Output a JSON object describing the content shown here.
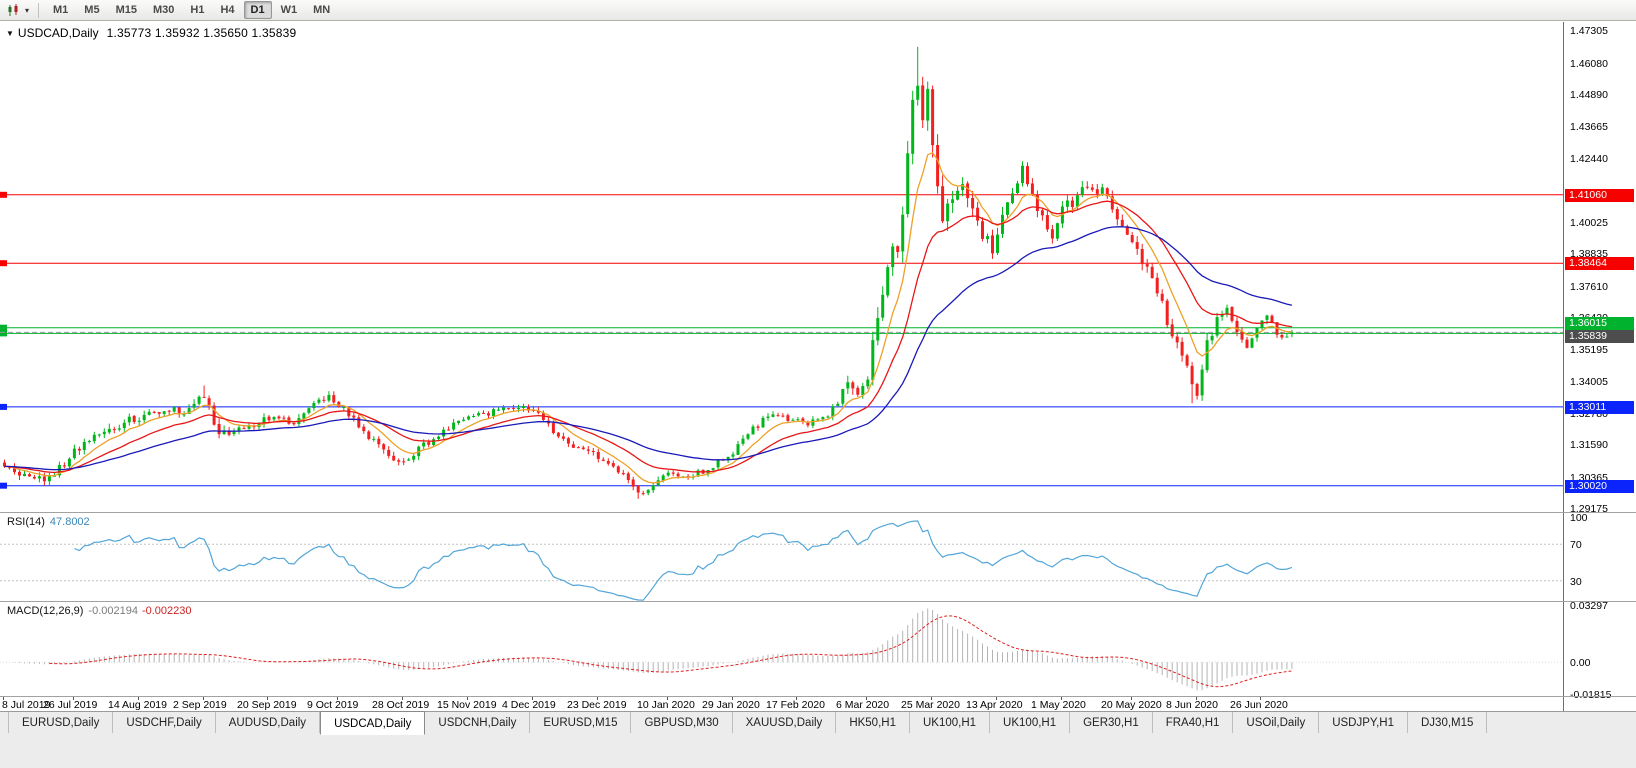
{
  "toolbar": {
    "periods": [
      "M1",
      "M5",
      "M15",
      "M30",
      "H1",
      "H4",
      "D1",
      "W1",
      "MN"
    ],
    "active_period": "D1",
    "chart_type_icon": "candlestick-chart-icon"
  },
  "chart": {
    "symbol_period": "USDCAD,Daily",
    "ohlc": {
      "open": "1.35773",
      "high": "1.35932",
      "low": "1.35650",
      "close": "1.35839"
    },
    "ohlc_text": "1.35773 1.35932 1.35650 1.35839"
  },
  "rsi": {
    "title": "RSI(14)",
    "value": "47.8002",
    "scale_labels": [
      "100",
      "70",
      "30"
    ],
    "level_lines": [
      70,
      30
    ],
    "line_color": "#53a6d8"
  },
  "macd": {
    "title": "MACD(12,26,9)",
    "value_main": "-0.002194",
    "value_signal": "-0.002230",
    "scale_labels": [
      "0.03297",
      "0.00",
      "-0.01815"
    ],
    "histogram_color": "#b4b4b4",
    "signal_color": "#e02020"
  },
  "tabs": {
    "active_index": 3,
    "items": [
      "EURUSD,Daily",
      "USDCHF,Daily",
      "AUDUSD,Daily",
      "USDCAD,Daily",
      "USDCNH,Daily",
      "EURUSD,M15",
      "GBPUSD,M30",
      "XAUUSD,Daily",
      "HK50,H1",
      "UK100,H1",
      "UK100,H1",
      "GER30,H1",
      "FRA40,H1",
      "USOil,Daily",
      "USDJPY,H1",
      "DJ30,M15"
    ]
  },
  "chart_data": {
    "type": "candlestick",
    "symbol": "USDCAD",
    "timeframe": "Daily",
    "title": "USDCAD,Daily",
    "current_bar": {
      "open": 1.35773,
      "high": 1.35932,
      "low": 1.3565,
      "close": 1.35839
    },
    "y_axis_ticks": [
      1.47305,
      1.4608,
      1.4489,
      1.43665,
      1.4244,
      1.40025,
      1.38835,
      1.3761,
      1.3642,
      1.35195,
      1.34005,
      1.3278,
      1.3159,
      1.30365,
      1.29175
    ],
    "y_axis_range": [
      1.2902,
      1.4762
    ],
    "x_axis_labels": [
      [
        "8 Jul 2019",
        0
      ],
      [
        "26 Jul 2019",
        14
      ],
      [
        "14 Aug 2019",
        27
      ],
      [
        "2 Sep 2019",
        40
      ],
      [
        "20 Sep 2019",
        53
      ],
      [
        "9 Oct 2019",
        67
      ],
      [
        "28 Oct 2019",
        80
      ],
      [
        "15 Nov 2019",
        93
      ],
      [
        "4 Dec 2019",
        106
      ],
      [
        "23 Dec 2019",
        119
      ],
      [
        "10 Jan 2020",
        133
      ],
      [
        "29 Jan 2020",
        146
      ],
      [
        "17 Feb 2020",
        159
      ],
      [
        "6 Mar 2020",
        173
      ],
      [
        "25 Mar 2020",
        186
      ],
      [
        "13 Apr 2020",
        199
      ],
      [
        "1 May 2020",
        212
      ],
      [
        "20 May 2020",
        226
      ],
      [
        "8 Jun 2020",
        239
      ],
      [
        "26 Jun 2020",
        252
      ]
    ],
    "num_candles": 259,
    "up_color": "#00b61b",
    "down_color": "#f32020",
    "close_anchors": [
      [
        0,
        1.3075,
        0.0035
      ],
      [
        4,
        1.3042,
        0.0035
      ],
      [
        9,
        1.3028,
        0.0032
      ],
      [
        14,
        1.3132,
        0.0036
      ],
      [
        18,
        1.3185,
        0.0038
      ],
      [
        22,
        1.3228,
        0.0042
      ],
      [
        27,
        1.3262,
        0.0038
      ],
      [
        32,
        1.3292,
        0.0035
      ],
      [
        36,
        1.3278,
        0.0035
      ],
      [
        40,
        1.3338,
        0.004
      ],
      [
        43,
        1.3195,
        0.0042
      ],
      [
        48,
        1.3222,
        0.0034
      ],
      [
        53,
        1.3258,
        0.003
      ],
      [
        58,
        1.3246,
        0.003
      ],
      [
        62,
        1.3305,
        0.0034
      ],
      [
        65,
        1.3332,
        0.0034
      ],
      [
        69,
        1.327,
        0.0034
      ],
      [
        73,
        1.3185,
        0.0034
      ],
      [
        77,
        1.312,
        0.0032
      ],
      [
        80,
        1.3082,
        0.003
      ],
      [
        84,
        1.3155,
        0.0034
      ],
      [
        88,
        1.3215,
        0.003
      ],
      [
        93,
        1.3252,
        0.0028
      ],
      [
        98,
        1.3286,
        0.0028
      ],
      [
        102,
        1.3302,
        0.0028
      ],
      [
        106,
        1.3288,
        0.0032
      ],
      [
        109,
        1.3225,
        0.0034
      ],
      [
        113,
        1.3162,
        0.0028
      ],
      [
        117,
        1.3128,
        0.0028
      ],
      [
        120,
        1.3098,
        0.0028
      ],
      [
        124,
        1.3042,
        0.0028
      ],
      [
        127,
        1.2972,
        0.003
      ],
      [
        130,
        1.2998,
        0.0028
      ],
      [
        133,
        1.3048,
        0.0028
      ],
      [
        137,
        1.3042,
        0.0024
      ],
      [
        141,
        1.3062,
        0.0024
      ],
      [
        146,
        1.3132,
        0.0028
      ],
      [
        150,
        1.3218,
        0.0028
      ],
      [
        154,
        1.3278,
        0.0026
      ],
      [
        158,
        1.3252,
        0.0024
      ],
      [
        161,
        1.3238,
        0.0024
      ],
      [
        164,
        1.3252,
        0.0026
      ],
      [
        167,
        1.3318,
        0.0036
      ],
      [
        169,
        1.3398,
        0.005
      ],
      [
        171,
        1.3342,
        0.0048
      ],
      [
        173,
        1.3422,
        0.0052
      ],
      [
        175,
        1.3662,
        0.0095
      ],
      [
        176,
        1.3728,
        0.0075
      ],
      [
        177,
        1.3808,
        0.0085
      ],
      [
        178,
        1.3918,
        0.0095
      ],
      [
        179,
        1.3878,
        0.0085
      ],
      [
        180,
        1.3988,
        0.0095
      ],
      [
        181,
        1.4238,
        0.0105
      ],
      [
        182,
        1.4478,
        0.0125
      ],
      [
        183,
        1.4505,
        0.0135
      ],
      [
        184,
        1.4418,
        0.0105
      ],
      [
        185,
        1.4488,
        0.0095
      ],
      [
        186,
        1.4308,
        0.0095
      ],
      [
        187,
        1.4152,
        0.009
      ],
      [
        188,
        1.4002,
        0.0085
      ],
      [
        190,
        1.4092,
        0.008
      ],
      [
        192,
        1.4178,
        0.0072
      ],
      [
        194,
        1.4022,
        0.0072
      ],
      [
        196,
        1.3952,
        0.0062
      ],
      [
        198,
        1.3892,
        0.0062
      ],
      [
        200,
        1.4032,
        0.0062
      ],
      [
        202,
        1.4112,
        0.0058
      ],
      [
        204,
        1.4198,
        0.0058
      ],
      [
        206,
        1.4088,
        0.0055
      ],
      [
        208,
        1.4012,
        0.005
      ],
      [
        210,
        1.3952,
        0.005
      ],
      [
        212,
        1.4072,
        0.005
      ],
      [
        214,
        1.4078,
        0.0048
      ],
      [
        216,
        1.4128,
        0.0048
      ],
      [
        218,
        1.4108,
        0.0046
      ],
      [
        220,
        1.4132,
        0.0046
      ],
      [
        222,
        1.4058,
        0.0046
      ],
      [
        224,
        1.3982,
        0.0048
      ],
      [
        226,
        1.3922,
        0.0048
      ],
      [
        228,
        1.3852,
        0.0048
      ],
      [
        230,
        1.3772,
        0.0048
      ],
      [
        232,
        1.3682,
        0.005
      ],
      [
        234,
        1.3572,
        0.005
      ],
      [
        236,
        1.3482,
        0.005
      ],
      [
        238,
        1.3392,
        0.0052
      ],
      [
        239,
        1.3362,
        0.005
      ],
      [
        240,
        1.3432,
        0.0055
      ],
      [
        241,
        1.3545,
        0.006
      ],
      [
        243,
        1.3622,
        0.0048
      ],
      [
        245,
        1.3662,
        0.004
      ],
      [
        247,
        1.3582,
        0.0038
      ],
      [
        249,
        1.3532,
        0.0036
      ],
      [
        251,
        1.3602,
        0.0036
      ],
      [
        253,
        1.3642,
        0.0036
      ],
      [
        255,
        1.3582,
        0.0032
      ],
      [
        256,
        1.3552,
        0.003
      ],
      [
        257,
        1.3568,
        0.0028
      ],
      [
        258,
        1.35839,
        0.0028
      ]
    ],
    "wick_overrides": {
      "40": {
        "high": 1.3382
      },
      "127": {
        "low": 1.2952
      },
      "183": {
        "high": 1.4668
      },
      "238": {
        "low": 1.3315
      },
      "258": {
        "open": 1.35773,
        "high": 1.35932,
        "low": 1.3565,
        "close": 1.35839
      }
    },
    "moving_averages": [
      {
        "period": 8,
        "color": "#eda128"
      },
      {
        "period": 20,
        "color": "#e81717"
      },
      {
        "period": 45,
        "color": "#1a1ab8"
      }
    ],
    "levels": [
      {
        "price": 1.4106,
        "color": "#f60000",
        "label": "1.41060"
      },
      {
        "price": 1.38464,
        "color": "#f60000",
        "label": "1.38464"
      },
      {
        "price": 1.36015,
        "color": "#00b22d",
        "label": "1.36015"
      },
      {
        "price": 1.358,
        "color": "#00b22d",
        "label": null
      },
      {
        "price": 1.33011,
        "color": "#0b24fb",
        "label": "1.33011"
      },
      {
        "price": 1.3002,
        "color": "#0b24fb",
        "label": "1.30020"
      }
    ],
    "bid": {
      "price": 1.35839,
      "label": "1.35839",
      "label_bg": "#4d4d4d"
    },
    "indicators": {
      "rsi_period": 14,
      "macd": [
        12,
        26,
        9
      ]
    }
  }
}
